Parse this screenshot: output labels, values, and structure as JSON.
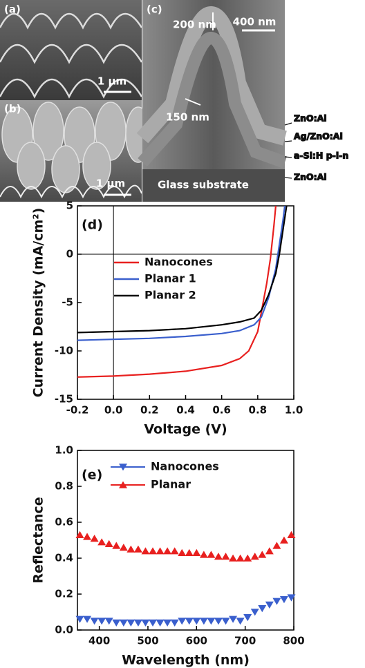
{
  "sem_panels": {
    "a": {
      "label": "(a)",
      "scale_bar": "1 μm"
    },
    "b": {
      "label": "(b)",
      "scale_bar": "1 μm"
    },
    "c": {
      "label": "(c)",
      "scale_bar": "400 nm",
      "annotations": [
        "200 nm",
        "150 nm",
        "Glass substrate"
      ],
      "layers": [
        "ZnO:Al",
        "Ag/ZnO:Al",
        "a-Si:H p-i-n",
        "ZnO:Al"
      ]
    }
  },
  "chart_data": [
    {
      "type": "line",
      "panel_label": "(d)",
      "x_label": "Voltage (V)",
      "y_label": "Current Density (mA/cm²)",
      "xlim": [
        -0.2,
        1.0
      ],
      "ylim": [
        -15,
        5
      ],
      "xticks": [
        -0.2,
        {
          "value": 0,
          "label": "0.0"
        },
        0.2,
        0.4,
        0.6,
        0.8,
        {
          "value": 1,
          "label": "1.0"
        }
      ],
      "yticks": [
        -15,
        -10,
        -5,
        0,
        5
      ],
      "zero_lines": true,
      "series": [
        {
          "name": "Nanocones",
          "color": "#e8201f",
          "x": [
            -0.2,
            0,
            0.2,
            0.4,
            0.6,
            0.7,
            0.75,
            0.8,
            0.82,
            0.85,
            0.87,
            0.89,
            0.9
          ],
          "values": [
            -12.7,
            -12.6,
            -12.4,
            -12.1,
            -11.5,
            -10.8,
            -10,
            -8,
            -6,
            -3,
            -0.5,
            3,
            5
          ]
        },
        {
          "name": "Planar 1",
          "color": "#3a5fcd",
          "x": [
            -0.2,
            0,
            0.2,
            0.4,
            0.6,
            0.7,
            0.78,
            0.82,
            0.86,
            0.9,
            0.92,
            0.94,
            0.95
          ],
          "values": [
            -8.9,
            -8.8,
            -8.7,
            -8.5,
            -8.2,
            -7.9,
            -7.3,
            -6.5,
            -4.5,
            -1.5,
            1,
            3.5,
            5
          ]
        },
        {
          "name": "Planar 2",
          "color": "#000000",
          "x": [
            -0.2,
            0,
            0.2,
            0.4,
            0.6,
            0.7,
            0.78,
            0.82,
            0.86,
            0.9,
            0.92,
            0.94,
            0.96
          ],
          "values": [
            -8.1,
            -8.0,
            -7.9,
            -7.7,
            -7.3,
            -7.0,
            -6.6,
            -5.8,
            -4.2,
            -2,
            0,
            2.5,
            5
          ]
        }
      ]
    },
    {
      "type": "scatter",
      "panel_label": "(e)",
      "x_label": "Wavelength (nm)",
      "y_label": "Reflectance",
      "xlim": [
        355,
        800
      ],
      "ylim": [
        0,
        1
      ],
      "xticks": [
        400,
        500,
        600,
        700,
        800
      ],
      "yticks": [
        {
          "value": 0,
          "label": "0.0"
        },
        0.2,
        0.4,
        0.6,
        0.8,
        {
          "value": 1,
          "label": "1.0"
        }
      ],
      "x": [
        360,
        375,
        390,
        405,
        420,
        435,
        450,
        465,
        480,
        495,
        510,
        525,
        540,
        555,
        570,
        585,
        600,
        615,
        630,
        645,
        660,
        675,
        690,
        705,
        720,
        735,
        750,
        765,
        780,
        795
      ],
      "series": [
        {
          "name": "Nanocones",
          "color": "#3a5fcd",
          "marker": "triangle-down",
          "values": [
            0.06,
            0.06,
            0.05,
            0.05,
            0.05,
            0.04,
            0.04,
            0.04,
            0.04,
            0.04,
            0.04,
            0.04,
            0.04,
            0.04,
            0.05,
            0.05,
            0.05,
            0.05,
            0.05,
            0.05,
            0.05,
            0.06,
            0.05,
            0.07,
            0.1,
            0.12,
            0.14,
            0.16,
            0.17,
            0.18
          ]
        },
        {
          "name": "Planar",
          "color": "#e8201f",
          "marker": "triangle-up",
          "values": [
            0.53,
            0.52,
            0.51,
            0.49,
            0.48,
            0.47,
            0.46,
            0.45,
            0.45,
            0.44,
            0.44,
            0.44,
            0.44,
            0.44,
            0.43,
            0.43,
            0.43,
            0.42,
            0.42,
            0.41,
            0.41,
            0.4,
            0.4,
            0.4,
            0.41,
            0.42,
            0.44,
            0.47,
            0.5,
            0.53
          ]
        }
      ]
    }
  ]
}
